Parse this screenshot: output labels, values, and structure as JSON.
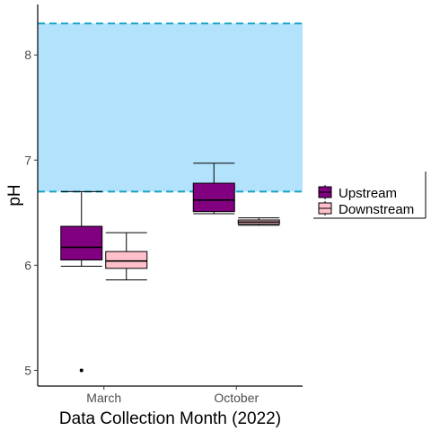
{
  "chart_data": {
    "type": "boxplot",
    "xlabel": "Data Collection Month (2022)",
    "ylabel": "pH",
    "categories": [
      "March",
      "October"
    ],
    "ylim": [
      4.85,
      8.48
    ],
    "y_ticks": [
      5,
      6,
      7,
      8
    ],
    "grid": false,
    "reference_band": {
      "low": 6.7,
      "high": 8.3,
      "fill_color": "#b3e2fc",
      "line_color": "#1aa3c6",
      "line_style": "dashed"
    },
    "legend": {
      "placement": "right"
    },
    "series": [
      {
        "name": "Upstream",
        "color": "#800080",
        "boxes": [
          {
            "category": "March",
            "min": 5.99,
            "q1": 6.05,
            "median": 6.17,
            "q3": 6.37,
            "max": 6.7,
            "outliers": [
              5.0
            ]
          },
          {
            "category": "October",
            "min": 6.49,
            "q1": 6.51,
            "median": 6.62,
            "q3": 6.78,
            "max": 6.97,
            "outliers": []
          }
        ]
      },
      {
        "name": "Downstream",
        "color": "#ffc0cb",
        "boxes": [
          {
            "category": "March",
            "min": 5.86,
            "q1": 5.97,
            "median": 6.04,
            "q3": 6.13,
            "max": 6.31,
            "outliers": []
          },
          {
            "category": "October",
            "min": 6.38,
            "q1": 6.39,
            "median": 6.41,
            "q3": 6.43,
            "max": 6.45,
            "outliers": []
          }
        ]
      }
    ]
  }
}
